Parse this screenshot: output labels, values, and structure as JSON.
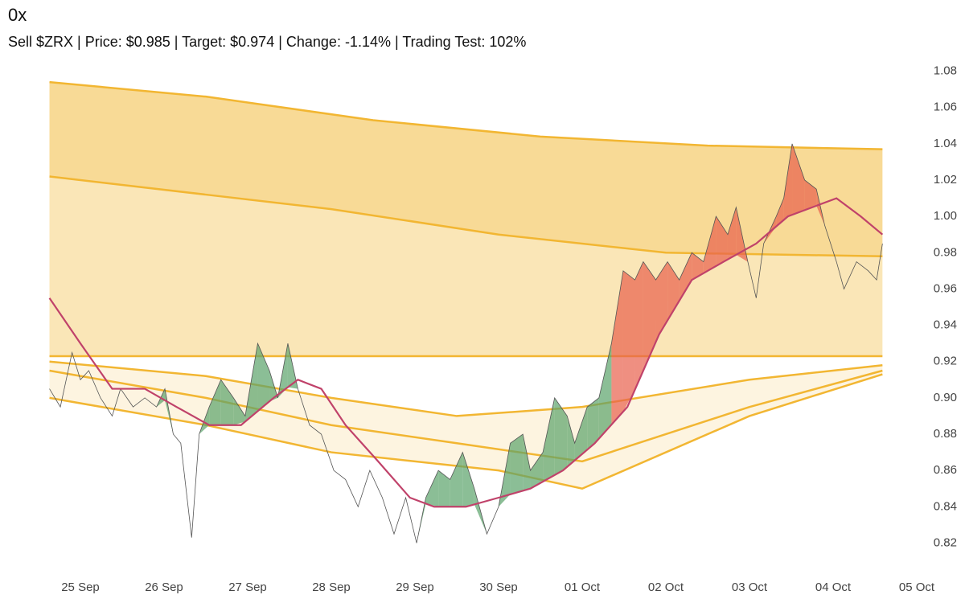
{
  "chart_data": {
    "type": "line",
    "title": "0x",
    "subtitle": "Sell $ZRX | Price: $0.985 | Target: $0.974 | Change: -1.14% | Trading Test: 102%",
    "xlim": [
      -0.4,
      10
    ],
    "ylim": [
      0.81,
      1.09
    ],
    "xticks": [
      {
        "value": 0,
        "label": "25 Sep"
      },
      {
        "value": 1,
        "label": "26 Sep"
      },
      {
        "value": 2,
        "label": "27 Sep"
      },
      {
        "value": 3,
        "label": "28 Sep"
      },
      {
        "value": 4,
        "label": "29 Sep"
      },
      {
        "value": 5,
        "label": "30 Sep"
      },
      {
        "value": 6,
        "label": "01 Oct"
      },
      {
        "value": 7,
        "label": "02 Oct"
      },
      {
        "value": 8,
        "label": "03 Oct"
      },
      {
        "value": 9,
        "label": "04 Oct"
      },
      {
        "value": 10,
        "label": "05 Oct"
      }
    ],
    "yticks": [
      0.82,
      0.84,
      0.86,
      0.88,
      {
        "value": 0.9,
        "label": "0.90"
      },
      0.92,
      0.94,
      0.96,
      0.98,
      {
        "value": 1,
        "label": "1.00"
      },
      1.02,
      1.04,
      1.06,
      1.08
    ],
    "bands": [
      {
        "color": "#f2b632",
        "x": [
          -0.37,
          1.5,
          3.5,
          5.5,
          7.5,
          9.59
        ],
        "values": [
          1.074,
          1.066,
          1.053,
          1.044,
          1.039,
          1.037
        ]
      },
      {
        "color": "#f2b632",
        "x": [
          -0.37,
          1.5,
          3.0,
          5.0,
          7.0,
          9.59
        ],
        "values": [
          1.022,
          1.012,
          1.004,
          0.99,
          0.98,
          0.978
        ]
      },
      {
        "color": "#f2b632",
        "x": [
          -0.37,
          9.59
        ],
        "values": [
          0.923,
          0.923
        ]
      },
      {
        "color": "#f2b632",
        "x": [
          -0.37,
          1.5,
          3.0,
          4.5,
          6.0,
          8.0,
          9.59
        ],
        "values": [
          0.92,
          0.912,
          0.9,
          0.89,
          0.895,
          0.91,
          0.918
        ]
      },
      {
        "color": "#f2b632",
        "x": [
          -0.37,
          1.5,
          3.0,
          4.5,
          6.0,
          8.0,
          9.59
        ],
        "values": [
          0.915,
          0.9,
          0.885,
          0.875,
          0.865,
          0.895,
          0.915
        ]
      },
      {
        "color": "#f2b632",
        "x": [
          -0.37,
          1.5,
          3.0,
          5.0,
          6.0,
          8.0,
          9.59
        ],
        "values": [
          0.9,
          0.885,
          0.87,
          0.86,
          0.85,
          0.89,
          0.913
        ]
      }
    ],
    "series": [
      {
        "color": "#555555",
        "up_color": "#e8604c",
        "down_color": "#5aa36a",
        "x": [
          -0.37,
          -0.24,
          -0.1,
          0.0,
          0.1,
          0.24,
          0.38,
          0.48,
          0.63,
          0.77,
          0.91,
          1.01,
          1.11,
          1.2,
          1.33,
          1.42,
          1.54,
          1.68,
          1.83,
          1.97,
          2.12,
          2.26,
          2.36,
          2.48,
          2.6,
          2.74,
          2.88,
          3.03,
          3.17,
          3.32,
          3.46,
          3.61,
          3.75,
          3.89,
          4.02,
          4.13,
          4.28,
          4.42,
          4.57,
          4.71,
          4.86,
          5.0,
          5.14,
          5.29,
          5.38,
          5.53,
          5.67,
          5.82,
          5.91,
          6.06,
          6.2,
          6.35,
          6.49,
          6.63,
          6.73,
          6.88,
          7.02,
          7.16,
          7.31,
          7.45,
          7.6,
          7.74,
          7.84,
          7.98,
          8.08,
          8.17,
          8.32,
          8.41,
          8.51,
          8.66,
          8.8,
          8.9,
          9.04,
          9.13,
          9.28,
          9.42,
          9.52,
          9.59
        ],
        "values": [
          0.905,
          0.895,
          0.925,
          0.91,
          0.915,
          0.9,
          0.89,
          0.905,
          0.895,
          0.9,
          0.895,
          0.905,
          0.88,
          0.875,
          0.823,
          0.88,
          0.895,
          0.91,
          0.9,
          0.89,
          0.93,
          0.915,
          0.9,
          0.93,
          0.905,
          0.885,
          0.88,
          0.86,
          0.855,
          0.84,
          0.86,
          0.845,
          0.825,
          0.845,
          0.82,
          0.845,
          0.86,
          0.855,
          0.87,
          0.85,
          0.825,
          0.84,
          0.875,
          0.88,
          0.86,
          0.87,
          0.9,
          0.89,
          0.875,
          0.895,
          0.9,
          0.93,
          0.97,
          0.965,
          0.975,
          0.965,
          0.975,
          0.965,
          0.98,
          0.975,
          1.0,
          0.99,
          1.005,
          0.975,
          0.955,
          0.985,
          1.0,
          1.01,
          1.04,
          1.02,
          1.015,
          0.995,
          0.975,
          0.96,
          0.975,
          0.97,
          0.965,
          0.985
        ]
      },
      {
        "color": "#c0426a",
        "x": [
          -0.37,
          0.0,
          0.38,
          0.77,
          1.15,
          1.54,
          1.92,
          2.31,
          2.6,
          2.88,
          3.17,
          3.56,
          3.94,
          4.23,
          4.61,
          5.0,
          5.38,
          5.77,
          6.15,
          6.54,
          6.92,
          7.31,
          7.69,
          8.08,
          8.46,
          8.75,
          9.04,
          9.33,
          9.59
        ],
        "values": [
          0.955,
          0.93,
          0.905,
          0.905,
          0.895,
          0.885,
          0.885,
          0.9,
          0.91,
          0.905,
          0.885,
          0.865,
          0.845,
          0.84,
          0.84,
          0.845,
          0.85,
          0.86,
          0.875,
          0.895,
          0.935,
          0.965,
          0.975,
          0.985,
          1.0,
          1.005,
          1.01,
          1.0,
          0.99
        ]
      }
    ]
  }
}
